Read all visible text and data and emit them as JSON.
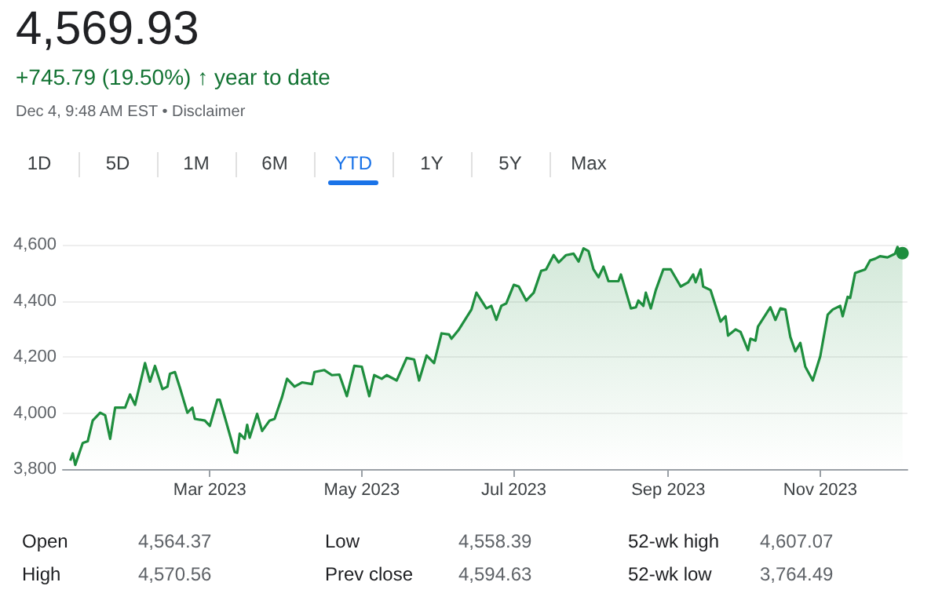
{
  "chart_data": {
    "type": "area",
    "title": "4,569.93",
    "subtitle": "+745.79 (19.50%) ↑ year to date",
    "annotations": [
      "Dec 4, 9:48 AM EST • Disclaimer",
      "1D",
      "5D",
      "1M",
      "6M",
      "YTD",
      "1Y",
      "5Y",
      "Max",
      "Open",
      "4,564.37",
      "Low",
      "4,558.39",
      "52-wk high",
      "4,607.07",
      "High",
      "4,570.56",
      "Prev close",
      "4,594.63",
      "52-wk low",
      "3,764.49"
    ],
    "x": [
      "2023-01-04",
      "2023-01-05",
      "2023-01-06",
      "2023-01-09",
      "2023-01-11",
      "2023-01-13",
      "2023-01-16",
      "2023-01-18",
      "2023-01-20",
      "2023-01-22",
      "2023-01-26",
      "2023-01-28",
      "2023-01-30",
      "2023-02-03",
      "2023-02-05",
      "2023-02-07",
      "2023-02-10",
      "2023-02-12",
      "2023-02-13",
      "2023-02-15",
      "2023-02-17",
      "2023-02-20",
      "2023-02-22",
      "2023-02-23",
      "2023-02-27",
      "2023-03-01",
      "2023-03-04",
      "2023-03-05",
      "2023-03-07",
      "2023-03-11",
      "2023-03-12",
      "2023-03-13",
      "2023-03-15",
      "2023-03-16",
      "2023-03-17",
      "2023-03-20",
      "2023-03-22",
      "2023-03-25",
      "2023-03-27",
      "2023-03-30",
      "2023-04-01",
      "2023-04-04",
      "2023-04-07",
      "2023-04-11",
      "2023-04-12",
      "2023-04-16",
      "2023-04-19",
      "2023-04-22",
      "2023-04-25",
      "2023-04-28",
      "2023-05-01",
      "2023-05-04",
      "2023-05-06",
      "2023-05-09",
      "2023-05-11",
      "2023-05-15",
      "2023-05-19",
      "2023-05-22",
      "2023-05-24",
      "2023-05-27",
      "2023-05-30",
      "2023-06-02",
      "2023-06-05",
      "2023-06-06",
      "2023-06-09",
      "2023-06-14",
      "2023-06-16",
      "2023-06-20",
      "2023-06-22",
      "2023-06-24",
      "2023-06-26",
      "2023-06-28",
      "2023-07-01",
      "2023-07-03",
      "2023-07-06",
      "2023-07-09",
      "2023-07-12",
      "2023-07-14",
      "2023-07-17",
      "2023-07-19",
      "2023-07-22",
      "2023-07-25",
      "2023-07-27",
      "2023-07-29",
      "2023-07-31",
      "2023-08-02",
      "2023-08-04",
      "2023-08-06",
      "2023-08-08",
      "2023-08-12",
      "2023-08-13",
      "2023-08-17",
      "2023-08-19",
      "2023-08-20",
      "2023-08-22",
      "2023-08-23",
      "2023-08-25",
      "2023-08-27",
      "2023-08-30",
      "2023-09-02",
      "2023-09-06",
      "2023-09-09",
      "2023-09-11",
      "2023-09-12",
      "2023-09-14",
      "2023-09-15",
      "2023-09-18",
      "2023-09-22",
      "2023-09-24",
      "2023-09-25",
      "2023-09-28",
      "2023-09-30",
      "2023-10-03",
      "2023-10-04",
      "2023-10-06",
      "2023-10-07",
      "2023-10-12",
      "2023-10-14",
      "2023-10-16",
      "2023-10-18",
      "2023-10-20",
      "2023-10-22",
      "2023-10-24",
      "2023-10-26",
      "2023-10-29",
      "2023-11-01",
      "2023-11-04",
      "2023-11-06",
      "2023-11-09",
      "2023-11-10",
      "2023-11-12",
      "2023-11-13",
      "2023-11-15",
      "2023-11-19",
      "2023-11-21",
      "2023-11-23",
      "2023-11-25",
      "2023-11-28",
      "2023-12-01",
      "2023-12-02",
      "2023-12-03",
      "2023-12-04"
    ],
    "series": [
      {
        "color": "#1e8e3e",
        "values": [
          3830,
          3856,
          3815,
          3893,
          3899,
          3973,
          4001,
          3992,
          3908,
          4019,
          4019,
          4066,
          4029,
          4178,
          4112,
          4168,
          4085,
          4094,
          4140,
          4146,
          4090,
          4001,
          4019,
          3979,
          3973,
          3954,
          4047,
          4047,
          3986,
          3861,
          3858,
          3926,
          3908,
          3958,
          3912,
          3997,
          3936,
          3973,
          3979,
          4057,
          4122,
          4094,
          4109,
          4103,
          4146,
          4153,
          4135,
          4137,
          4060,
          4168,
          4165,
          4060,
          4135,
          4122,
          4135,
          4116,
          4196,
          4191,
          4116,
          4205,
          4178,
          4284,
          4280,
          4265,
          4298,
          4369,
          4429,
          4373,
          4382,
          4332,
          4382,
          4391,
          4457,
          4451,
          4401,
          4429,
          4507,
          4512,
          4563,
          4537,
          4563,
          4568,
          4540,
          4587,
          4577,
          4512,
          4484,
          4522,
          4470,
          4470,
          4494,
          4373,
          4377,
          4401,
          4382,
          4429,
          4373,
          4438,
          4512,
          4512,
          4451,
          4466,
          4494,
          4466,
          4512,
          4451,
          4438,
          4326,
          4345,
          4276,
          4298,
          4289,
          4224,
          4265,
          4258,
          4308,
          4377,
          4332,
          4373,
          4369,
          4271,
          4220,
          4250,
          4165,
          4116,
          4202,
          4351,
          4369,
          4382,
          4345,
          4414,
          4410,
          4499,
          4512,
          4544,
          4550,
          4559,
          4555,
          4568,
          4592,
          4574,
          4570
        ]
      }
    ],
    "xlim": [
      "2023-01-01",
      "2023-12-06"
    ],
    "xticks": [
      {
        "value": "2023-03-01",
        "label": "Mar 2023"
      },
      {
        "value": "2023-05-01",
        "label": "May 2023"
      },
      {
        "value": "2023-07-01",
        "label": "Jul 2023"
      },
      {
        "value": "2023-09-01",
        "label": "Sep 2023"
      },
      {
        "value": "2023-11-01",
        "label": "Nov 2023"
      }
    ],
    "ylim": [
      3800,
      4600
    ],
    "yticks": [
      {
        "value": 3800,
        "label": "3,800"
      },
      {
        "value": 4000,
        "label": "4,000"
      },
      {
        "value": 4200,
        "label": "4,200"
      },
      {
        "value": 4400,
        "label": "4,400"
      },
      {
        "value": 4600,
        "label": "4,600"
      }
    ],
    "grid": "y"
  }
}
